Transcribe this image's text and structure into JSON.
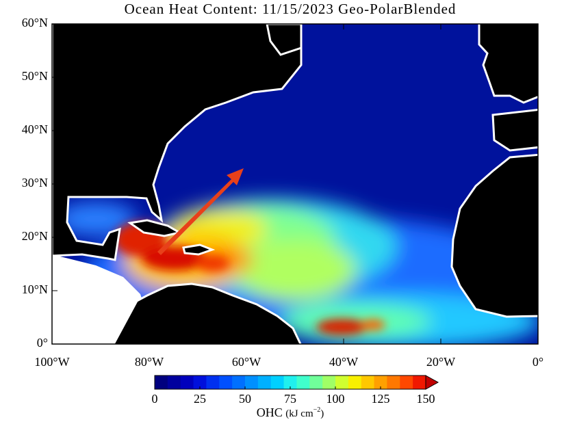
{
  "map": {
    "title": "Ocean Heat Content: 11/15/2023 Geo-PolarBlended",
    "lon_range": [
      -100,
      0
    ],
    "lat_range": [
      0,
      60
    ],
    "lon_ticks": [
      {
        "value": -100,
        "label": "100°W"
      },
      {
        "value": -80,
        "label": "80°W"
      },
      {
        "value": -60,
        "label": "60°W"
      },
      {
        "value": -40,
        "label": "40°W"
      },
      {
        "value": -20,
        "label": "20°W"
      },
      {
        "value": 0,
        "label": "0°"
      }
    ],
    "lat_ticks": [
      {
        "value": 0,
        "label": "0°"
      },
      {
        "value": 10,
        "label": "10°N"
      },
      {
        "value": 20,
        "label": "20°N"
      },
      {
        "value": 30,
        "label": "30°N"
      },
      {
        "value": 40,
        "label": "40°N"
      },
      {
        "value": 50,
        "label": "50°N"
      },
      {
        "value": 60,
        "label": "60°N"
      }
    ]
  },
  "colorbar": {
    "range": [
      0,
      150
    ],
    "ticks": [
      0,
      25,
      50,
      75,
      100,
      125,
      150
    ],
    "colors": [
      "#00007f",
      "#00009e",
      "#0000bd",
      "#0010dc",
      "#0030f0",
      "#0050ff",
      "#0070ff",
      "#0090ff",
      "#00b0ff",
      "#00d0ff",
      "#20f0ee",
      "#40ffcc",
      "#70ff9a",
      "#a0ff66",
      "#d0ff30",
      "#f8f000",
      "#ffc800",
      "#ffa000",
      "#ff7800",
      "#ff4800",
      "#f01800",
      "#c00000"
    ],
    "label": "OHC",
    "unit": [
      "(kJ cm",
      "−2",
      ")"
    ]
  }
}
